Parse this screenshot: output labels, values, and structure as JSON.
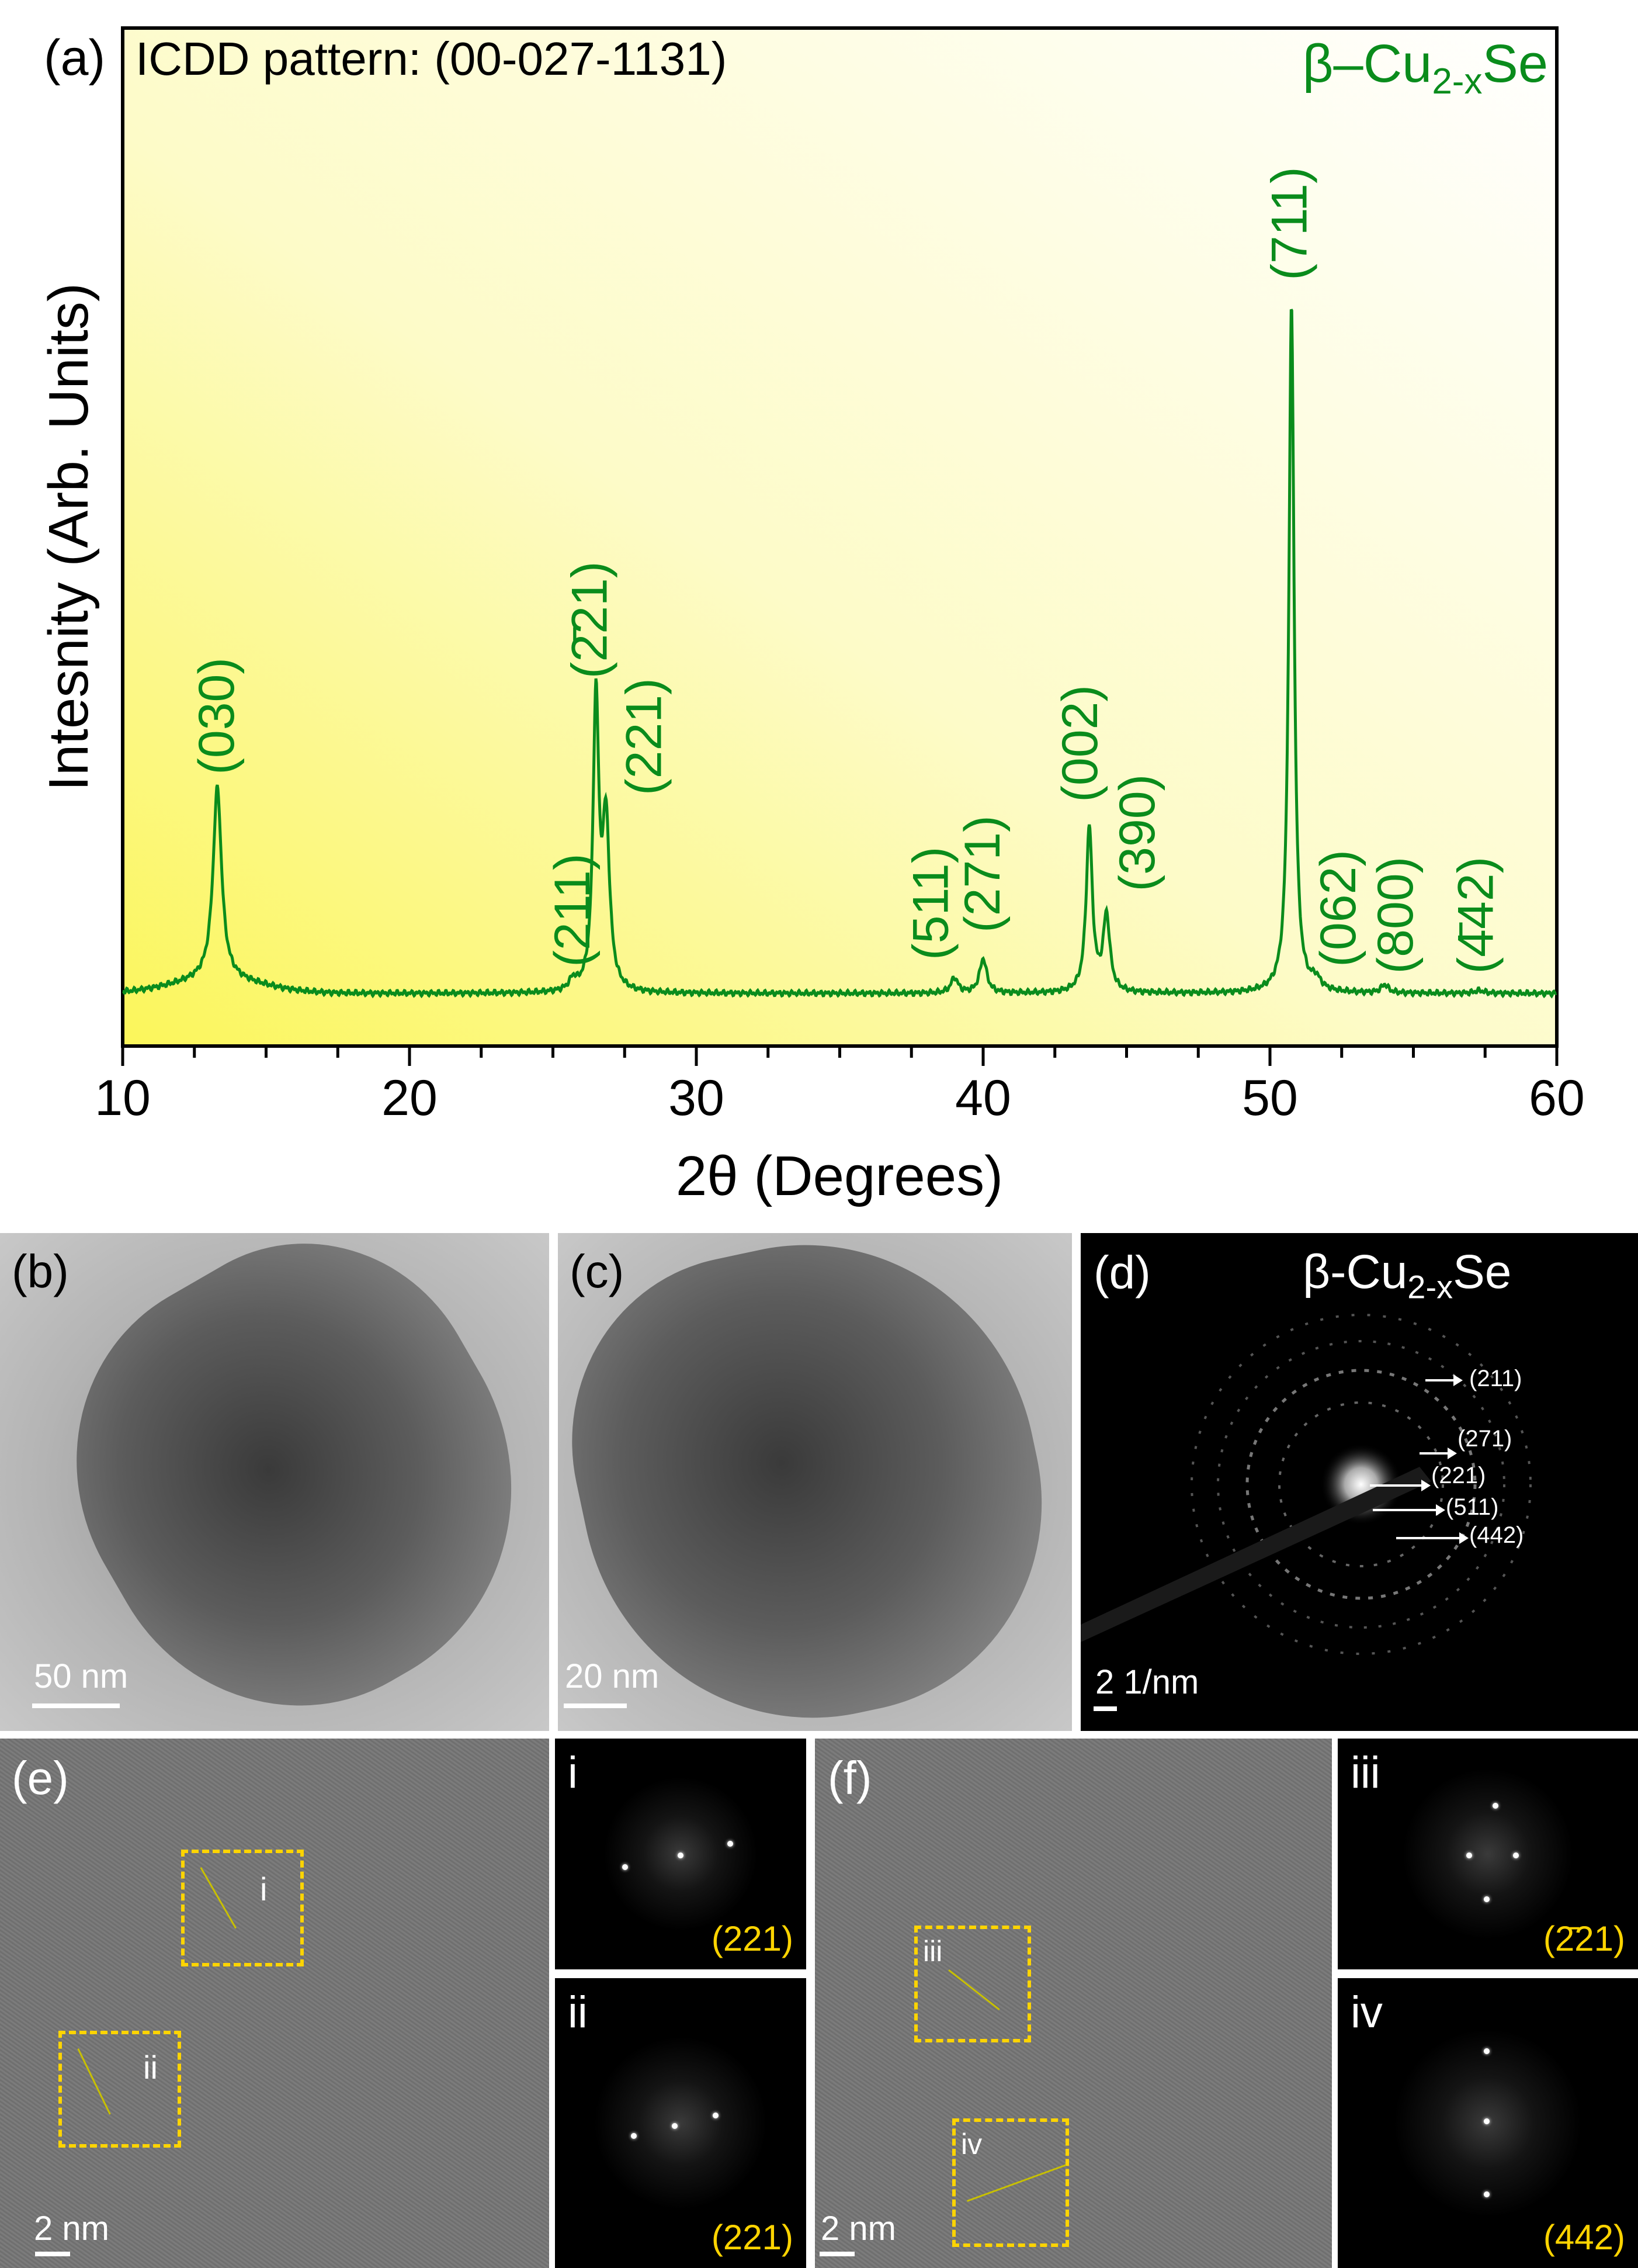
{
  "chart_data": {
    "type": "line",
    "panel_label": "(a)",
    "title": "ICDD pattern: (00-027-1131)",
    "phase_label": "β–Cu",
    "phase_sub": "2-x",
    "phase_tail": "Se",
    "xlabel": "2θ (Degrees)",
    "ylabel": "Intesnity (Arb. Units)",
    "xlim": [
      10,
      60
    ],
    "ylim": [
      0,
      1.12
    ],
    "xticks": [
      "10",
      "20",
      "30",
      "40",
      "50",
      "60"
    ],
    "grid": false,
    "line_color": "#0a8c1c",
    "peaks": [
      {
        "x": 13.3,
        "height": 0.28,
        "width": 0.18
      },
      {
        "x": 25.7,
        "height": 0.015,
        "width": 0.15
      },
      {
        "x": 26.5,
        "height": 0.42,
        "width": 0.12
      },
      {
        "x": 26.85,
        "height": 0.24,
        "width": 0.15
      },
      {
        "x": 39.0,
        "height": 0.022,
        "width": 0.15
      },
      {
        "x": 40.0,
        "height": 0.05,
        "width": 0.15
      },
      {
        "x": 43.7,
        "height": 0.24,
        "width": 0.13
      },
      {
        "x": 44.3,
        "height": 0.11,
        "width": 0.14
      },
      {
        "x": 50.75,
        "height": 1.0,
        "width": 0.11
      },
      {
        "x": 51.6,
        "height": 0.015,
        "width": 0.2
      },
      {
        "x": 54.0,
        "height": 0.012,
        "width": 0.15
      },
      {
        "x": 57.3,
        "height": 0.004,
        "width": 0.2
      }
    ],
    "baseline": 0.0,
    "annotations": [
      {
        "text": "(030)",
        "x": 13.3,
        "y": 0.31
      },
      {
        "text": "(211)",
        "x": 25.7,
        "y": 0.03
      },
      {
        "text": "(2̄21)",
        "x": 26.3,
        "y": 0.45
      },
      {
        "text": "(221)",
        "x": 28.2,
        "y": 0.28
      },
      {
        "text": "(511)",
        "x": 38.2,
        "y": 0.04
      },
      {
        "text": "(271)",
        "x": 40.0,
        "y": 0.08
      },
      {
        "text": "(002)",
        "x": 43.4,
        "y": 0.27
      },
      {
        "text": "(390)",
        "x": 45.4,
        "y": 0.14
      },
      {
        "text": "(711)",
        "x": 50.7,
        "y": 1.03
      },
      {
        "text": "(062)",
        "x": 52.4,
        "y": 0.03
      },
      {
        "text": "(800)",
        "x": 54.4,
        "y": 0.02
      },
      {
        "text": "(4̄42)",
        "x": 57.2,
        "y": 0.02
      }
    ]
  },
  "panels": {
    "b": {
      "label": "(b)",
      "scale": "50 nm"
    },
    "c": {
      "label": "(c)",
      "scale": "20 nm"
    },
    "d": {
      "label": "(d)",
      "scale": "2 1/nm",
      "phase": "β-Cu",
      "phase_sub": "2-x",
      "phase_tail": "Se",
      "rings": [
        "(211)",
        "(271)",
        "(221)",
        "(511)",
        "(442)"
      ]
    },
    "e": {
      "label": "(e)",
      "scale": "2 nm",
      "box1": "i",
      "box2": "ii"
    },
    "i": {
      "label": "i",
      "plane": "(221)"
    },
    "ii": {
      "label": "ii",
      "plane": "(221)"
    },
    "f": {
      "label": "(f)",
      "scale": "2 nm",
      "box1": "iii",
      "box2": "iv"
    },
    "iii": {
      "label": "iii",
      "plane": "(2̄21)"
    },
    "iv": {
      "label": "iv",
      "plane": "(442)"
    }
  }
}
